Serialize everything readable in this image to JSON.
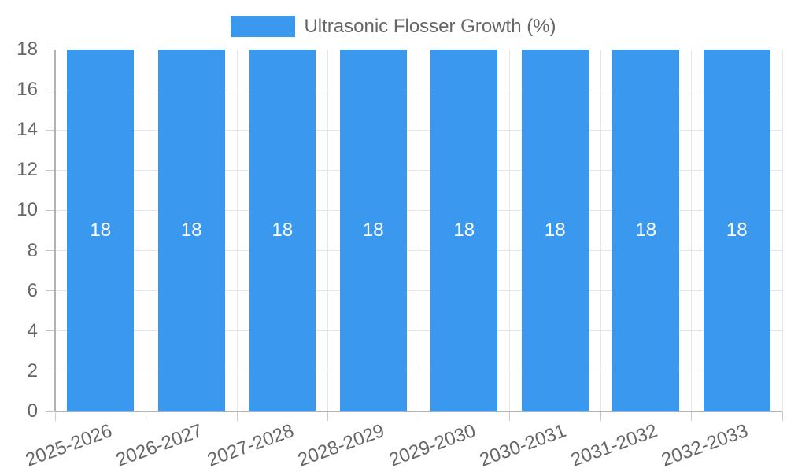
{
  "legend": {
    "label": "Ultrasonic Flosser Growth (%)"
  },
  "chart_data": {
    "type": "bar",
    "title": "",
    "categories": [
      "2025-2026",
      "2026-2027",
      "2027-2028",
      "2028-2029",
      "2029-2030",
      "2030-2031",
      "2031-2032",
      "2032-2033"
    ],
    "series": [
      {
        "name": "Ultrasonic Flosser Growth (%)",
        "values": [
          18,
          18,
          18,
          18,
          18,
          18,
          18,
          18
        ]
      }
    ],
    "bar_value_labels": [
      "18",
      "18",
      "18",
      "18",
      "18",
      "18",
      "18",
      "18"
    ],
    "xlabel": "",
    "ylabel": "",
    "ylim": [
      0,
      18
    ],
    "y_tick_step": 2,
    "y_tick_labels": [
      "0",
      "2",
      "4",
      "6",
      "8",
      "10",
      "12",
      "14",
      "16",
      "18"
    ],
    "grid": true,
    "legend_position": "top",
    "colors": {
      "bar": "#3a99ee",
      "bar_value_label": "#ffffff",
      "tick_text": "#666666",
      "legend_text": "#666666",
      "grid_line": "#e5e5e5",
      "tick_mark": "#c9c9c9",
      "axis_line": "#b2b2b2",
      "background": "#ffffff"
    }
  }
}
